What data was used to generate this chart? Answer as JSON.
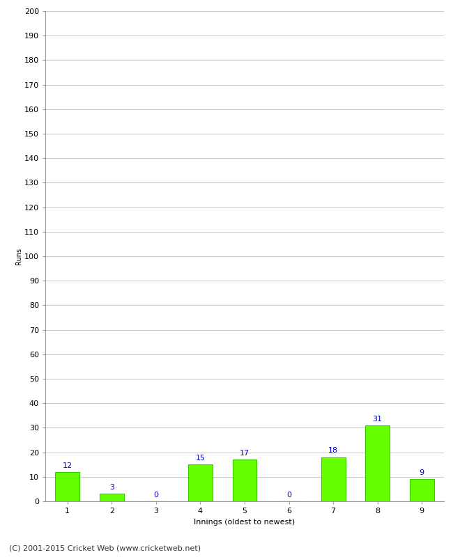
{
  "xlabel": "Innings (oldest to newest)",
  "ylabel": "Runs",
  "categories": [
    "1",
    "2",
    "3",
    "4",
    "5",
    "6",
    "7",
    "8",
    "9"
  ],
  "values": [
    12,
    3,
    0,
    15,
    17,
    0,
    18,
    31,
    9
  ],
  "bar_color": "#66ff00",
  "bar_edge_color": "#33cc00",
  "label_color": "#0000cc",
  "ylim": [
    0,
    200
  ],
  "yticks": [
    0,
    10,
    20,
    30,
    40,
    50,
    60,
    70,
    80,
    90,
    100,
    110,
    120,
    130,
    140,
    150,
    160,
    170,
    180,
    190,
    200
  ],
  "background_color": "#ffffff",
  "grid_color": "#cccccc",
  "footer_text": "(C) 2001-2015 Cricket Web (www.cricketweb.net)",
  "label_fontsize": 8,
  "axis_fontsize": 8,
  "ylabel_fontsize": 7,
  "footer_fontsize": 8,
  "bar_width": 0.55
}
